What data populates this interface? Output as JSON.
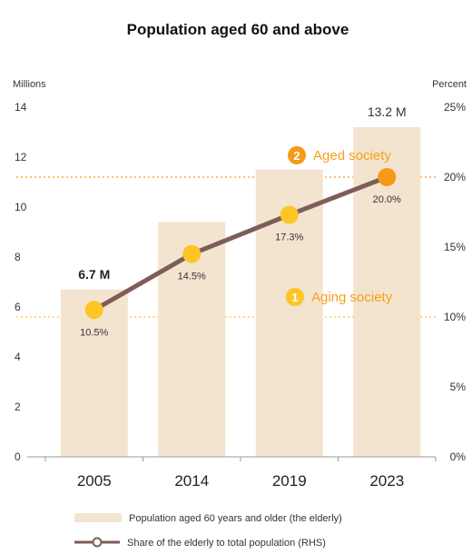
{
  "chart_data": {
    "type": "bar",
    "title": "Population aged 60 and above",
    "categories": [
      "2005",
      "2014",
      "2019",
      "2023"
    ],
    "y_left": {
      "unit": "Millions",
      "ylim": [
        0,
        14
      ],
      "ticks": [
        "0",
        "2",
        "4",
        "6",
        "8",
        "10",
        "12",
        "14"
      ]
    },
    "y_right": {
      "unit": "Percent",
      "ylim": [
        0,
        25
      ],
      "ticks": [
        "0%",
        "5%",
        "10%",
        "15%",
        "20%",
        "25%"
      ]
    },
    "series": [
      {
        "name": "Population aged 60 years and older (the elderly)",
        "type": "bar",
        "axis": "left",
        "values": [
          6.7,
          9.4,
          11.5,
          13.2
        ],
        "color": "#f3e4cf"
      },
      {
        "name": "Share of the elderly to total population (RHS)",
        "type": "line",
        "axis": "right",
        "values": [
          10.5,
          14.5,
          17.3,
          20.0
        ],
        "point_labels": [
          "10.5%",
          "14.5%",
          "17.3%",
          "20.0%"
        ],
        "line_color": "#7d5d58",
        "marker_color": "#ffc526",
        "last_marker_color": "#f59a18"
      }
    ],
    "bar_labels": [
      {
        "index": 0,
        "text": "6.7 M"
      },
      {
        "index": 3,
        "text": "13.2 M"
      }
    ],
    "thresholds": [
      {
        "number": "1",
        "label": "Aging society",
        "value": 10,
        "axis": "right",
        "color": "#ffc526"
      },
      {
        "number": "2",
        "label": "Aged society",
        "value": 20,
        "axis": "right",
        "color": "#f59a18"
      }
    ],
    "legend_placement": "bottom",
    "grid": false
  }
}
